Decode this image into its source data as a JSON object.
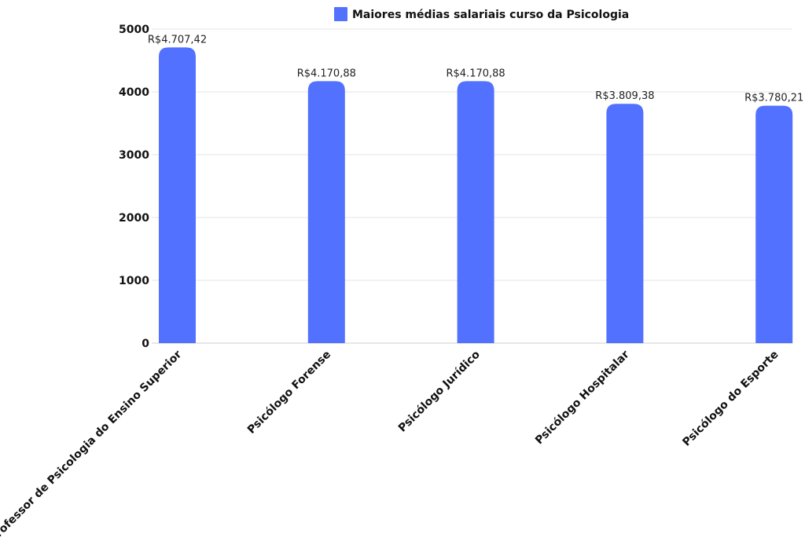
{
  "chart_data": {
    "type": "bar",
    "title": "",
    "xlabel": "",
    "ylabel": "",
    "legend": {
      "placement": "top-center",
      "entries": [
        "Maiores médias salariais curso da Psicologia"
      ]
    },
    "categories": [
      "Professor de Psicologia do Ensino Superior",
      "Psicólogo Forense",
      "Psicólogo Jurídico",
      "Psicólogo Hospitalar",
      "Psicólogo do Esporte"
    ],
    "series": [
      {
        "name": "Maiores médias salariais curso da Psicologia",
        "values": [
          4707.42,
          4170.88,
          4170.88,
          3809.38,
          3780.21
        ],
        "labels": [
          "R$4.707,42",
          "R$4.170,88",
          "R$4.170,88",
          "R$3.809,38",
          "R$3.780,21"
        ]
      }
    ],
    "ylim": [
      0,
      5000
    ],
    "yticks": [
      0,
      1000,
      2000,
      3000,
      4000,
      5000
    ],
    "grid": true,
    "colors": {
      "bar": "#5271ff",
      "grid": "#e6e6e6"
    }
  }
}
